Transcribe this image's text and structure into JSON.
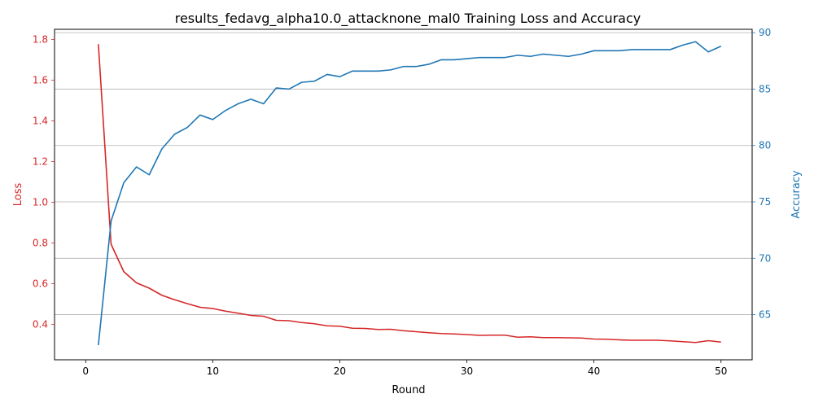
{
  "chart_data": {
    "type": "line",
    "title": "results_fedavg_alpha10.0_attacknone_mal0 Training Loss and Accuracy",
    "xlabel": "Round",
    "ylabel_left": "Loss",
    "ylabel_right": "Accuracy",
    "xlim": [
      -2.45,
      52.45
    ],
    "ylim_left": [
      0.226,
      1.85
    ],
    "ylim_right": [
      61.0,
      90.3
    ],
    "x_ticks": [
      0,
      10,
      20,
      30,
      40,
      50
    ],
    "y_ticks_left": [
      0.4,
      0.6,
      0.8,
      1.0,
      1.2,
      1.4,
      1.6,
      1.8
    ],
    "y_ticks_right": [
      65,
      70,
      75,
      80,
      85,
      90
    ],
    "grid": "horizontal lines at right-axis ticks",
    "x": [
      1,
      2,
      3,
      4,
      5,
      6,
      7,
      8,
      9,
      10,
      11,
      12,
      13,
      14,
      15,
      16,
      17,
      18,
      19,
      20,
      21,
      22,
      23,
      24,
      25,
      26,
      27,
      28,
      29,
      30,
      31,
      32,
      33,
      34,
      35,
      36,
      37,
      38,
      39,
      40,
      41,
      42,
      43,
      44,
      45,
      46,
      47,
      48,
      49,
      50
    ],
    "series": [
      {
        "name": "Loss",
        "axis": "left",
        "color": "#d62728",
        "values": [
          1.777,
          0.794,
          0.659,
          0.604,
          0.578,
          0.543,
          0.521,
          0.502,
          0.484,
          0.478,
          0.465,
          0.455,
          0.444,
          0.44,
          0.42,
          0.418,
          0.409,
          0.403,
          0.393,
          0.391,
          0.381,
          0.38,
          0.375,
          0.376,
          0.369,
          0.364,
          0.359,
          0.355,
          0.353,
          0.35,
          0.346,
          0.347,
          0.347,
          0.337,
          0.339,
          0.335,
          0.335,
          0.334,
          0.333,
          0.328,
          0.327,
          0.324,
          0.322,
          0.322,
          0.322,
          0.319,
          0.315,
          0.311,
          0.32,
          0.313
        ]
      },
      {
        "name": "Accuracy",
        "axis": "right",
        "color": "#1f77b4",
        "values": [
          62.3,
          73.3,
          76.7,
          78.1,
          77.4,
          79.7,
          81.0,
          81.6,
          82.7,
          82.3,
          83.1,
          83.7,
          84.1,
          83.7,
          85.1,
          85.0,
          85.6,
          85.7,
          86.3,
          86.1,
          86.6,
          86.6,
          86.6,
          86.7,
          87.0,
          87.0,
          87.2,
          87.6,
          87.6,
          87.7,
          87.8,
          87.8,
          87.8,
          88.0,
          87.9,
          88.1,
          88.0,
          87.9,
          88.1,
          88.4,
          88.4,
          88.4,
          88.5,
          88.5,
          88.5,
          88.5,
          88.9,
          89.2,
          88.3,
          88.8
        ]
      }
    ]
  }
}
